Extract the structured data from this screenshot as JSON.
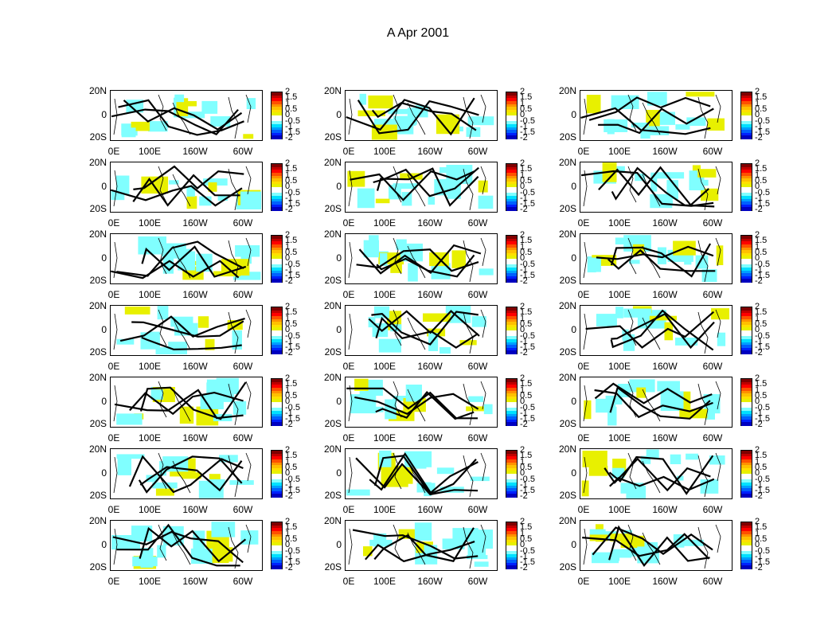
{
  "figure_title": "A Apr 2001",
  "chart_data": {
    "type": "heatmap",
    "title": "A Apr 2001",
    "layout": "7 rows x 3 columns of map panels",
    "panel_count": 21,
    "lat_ticks": [
      "20N",
      "0",
      "20S"
    ],
    "lon_ticks": [
      "0E",
      "100E",
      "160W",
      "60W"
    ],
    "lon_range": [
      0,
      360
    ],
    "lat_range": [
      -20,
      20
    ],
    "colorbar": {
      "range": [
        -2,
        2
      ],
      "ticks": [
        "2",
        "1.5",
        "1",
        "0.5",
        "0",
        "-0.5",
        "-1",
        "-1.5",
        "-2"
      ],
      "colors": [
        "#800000",
        "#c00000",
        "#ff0000",
        "#ff5000",
        "#ff9000",
        "#ffc000",
        "#ffe000",
        "#e8f000",
        "#ffffff",
        "#ffffff",
        "#80ffff",
        "#00e0ff",
        "#00a0ff",
        "#0060ff",
        "#0020ff",
        "#0000c0"
      ]
    },
    "values_note": "",
    "grid": false
  }
}
